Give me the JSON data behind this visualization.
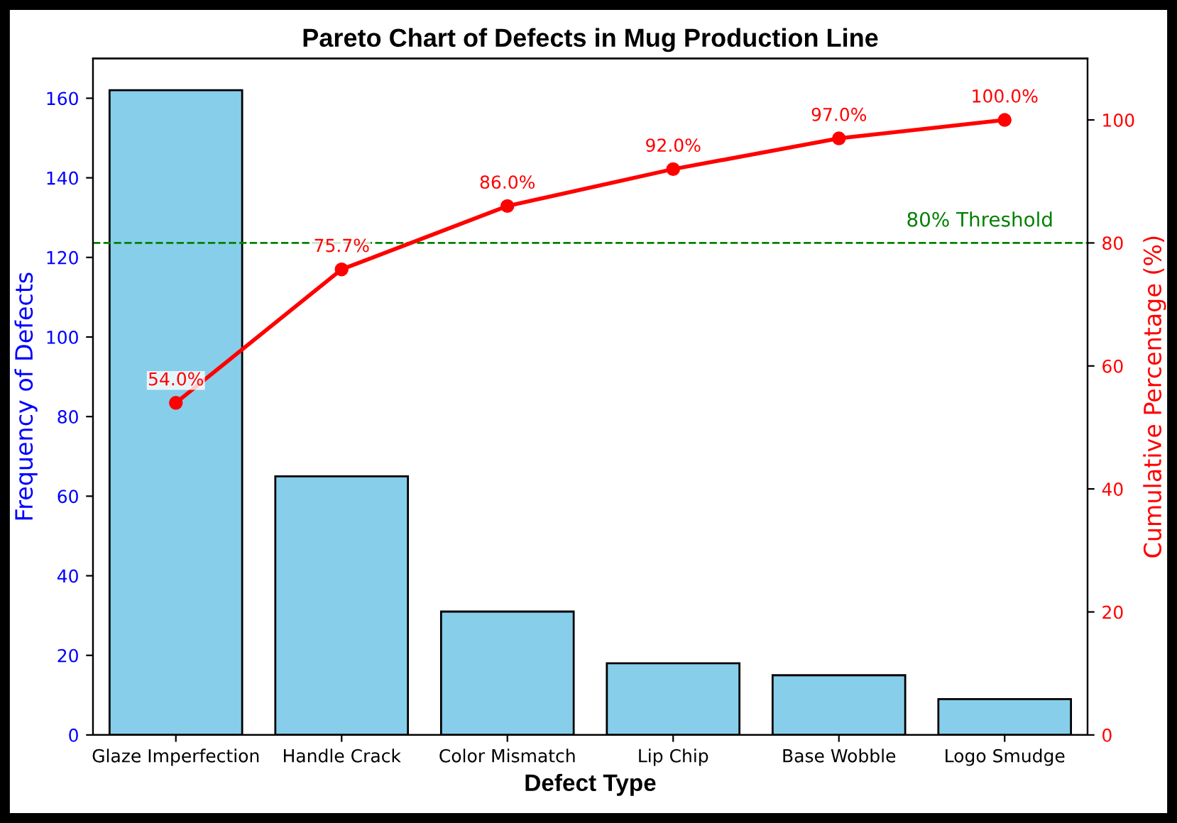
{
  "chart_data": {
    "type": "bar",
    "title": "Pareto Chart of Defects in Mug Production Line",
    "xlabel": "Defect Type",
    "ylabel": "Frequency of Defects",
    "y2label": "Cumulative Percentage (%)",
    "categories": [
      "Glaze Imperfection",
      "Handle Crack",
      "Color Mismatch",
      "Lip Chip",
      "Base Wobble",
      "Logo Smudge"
    ],
    "series": [
      {
        "color": "#87ceeb",
        "values": [
          162,
          65,
          31,
          18,
          15,
          9
        ]
      },
      {
        "type": "line",
        "axis": "y2",
        "color": "#ff0000",
        "marker": "circle",
        "line_style": "solid",
        "values": [
          54.0,
          75.7,
          86.0,
          92.0,
          97.0,
          100.0
        ],
        "value_labels": [
          "54.0%",
          "75.7%",
          "86.0%",
          "92.0%",
          "97.0%",
          "100.0%"
        ]
      }
    ],
    "ylim": [
      0,
      170
    ],
    "yticks": [
      0,
      20,
      40,
      60,
      80,
      100,
      120,
      140,
      160
    ],
    "y2lim": [
      0,
      110
    ],
    "y2ticks": [
      0,
      20,
      40,
      60,
      80,
      100
    ],
    "ref_lines": [
      {
        "axis": "y2",
        "value": 80,
        "label": "80% Threshold",
        "color": "#008000",
        "line_style": "dashed"
      }
    ],
    "grid": false,
    "legend": false
  }
}
